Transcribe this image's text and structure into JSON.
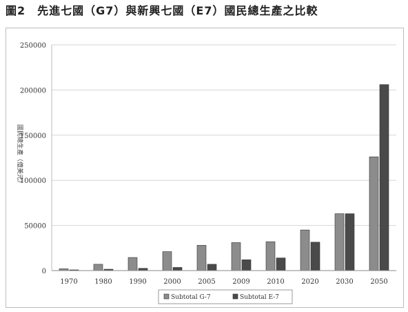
{
  "chart_data": {
    "type": "bar",
    "title": "圖2　先進七國（G7）與新興七國（E7）國民總生產之比較",
    "ylabel": "國民總生產（億美元）",
    "xlabel": "",
    "categories": [
      "1970",
      "1980",
      "1990",
      "2000",
      "2005",
      "2009",
      "2010",
      "2020",
      "2030",
      "2050"
    ],
    "series": [
      {
        "name": "Subtotal G-7",
        "color": "#8c8c8c",
        "values": [
          2000,
          7000,
          14500,
          21000,
          28000,
          31000,
          32000,
          45000,
          63000,
          126000
        ]
      },
      {
        "name": "Subtotal E-7",
        "color": "#4a4a4a",
        "values": [
          800,
          1500,
          2500,
          3500,
          7000,
          12000,
          14000,
          31500,
          63000,
          206000
        ]
      }
    ],
    "ylim": [
      0,
      250000
    ],
    "yticks": [
      0,
      50000,
      100000,
      150000,
      200000,
      250000
    ],
    "grid": true,
    "legend": "bottom"
  }
}
